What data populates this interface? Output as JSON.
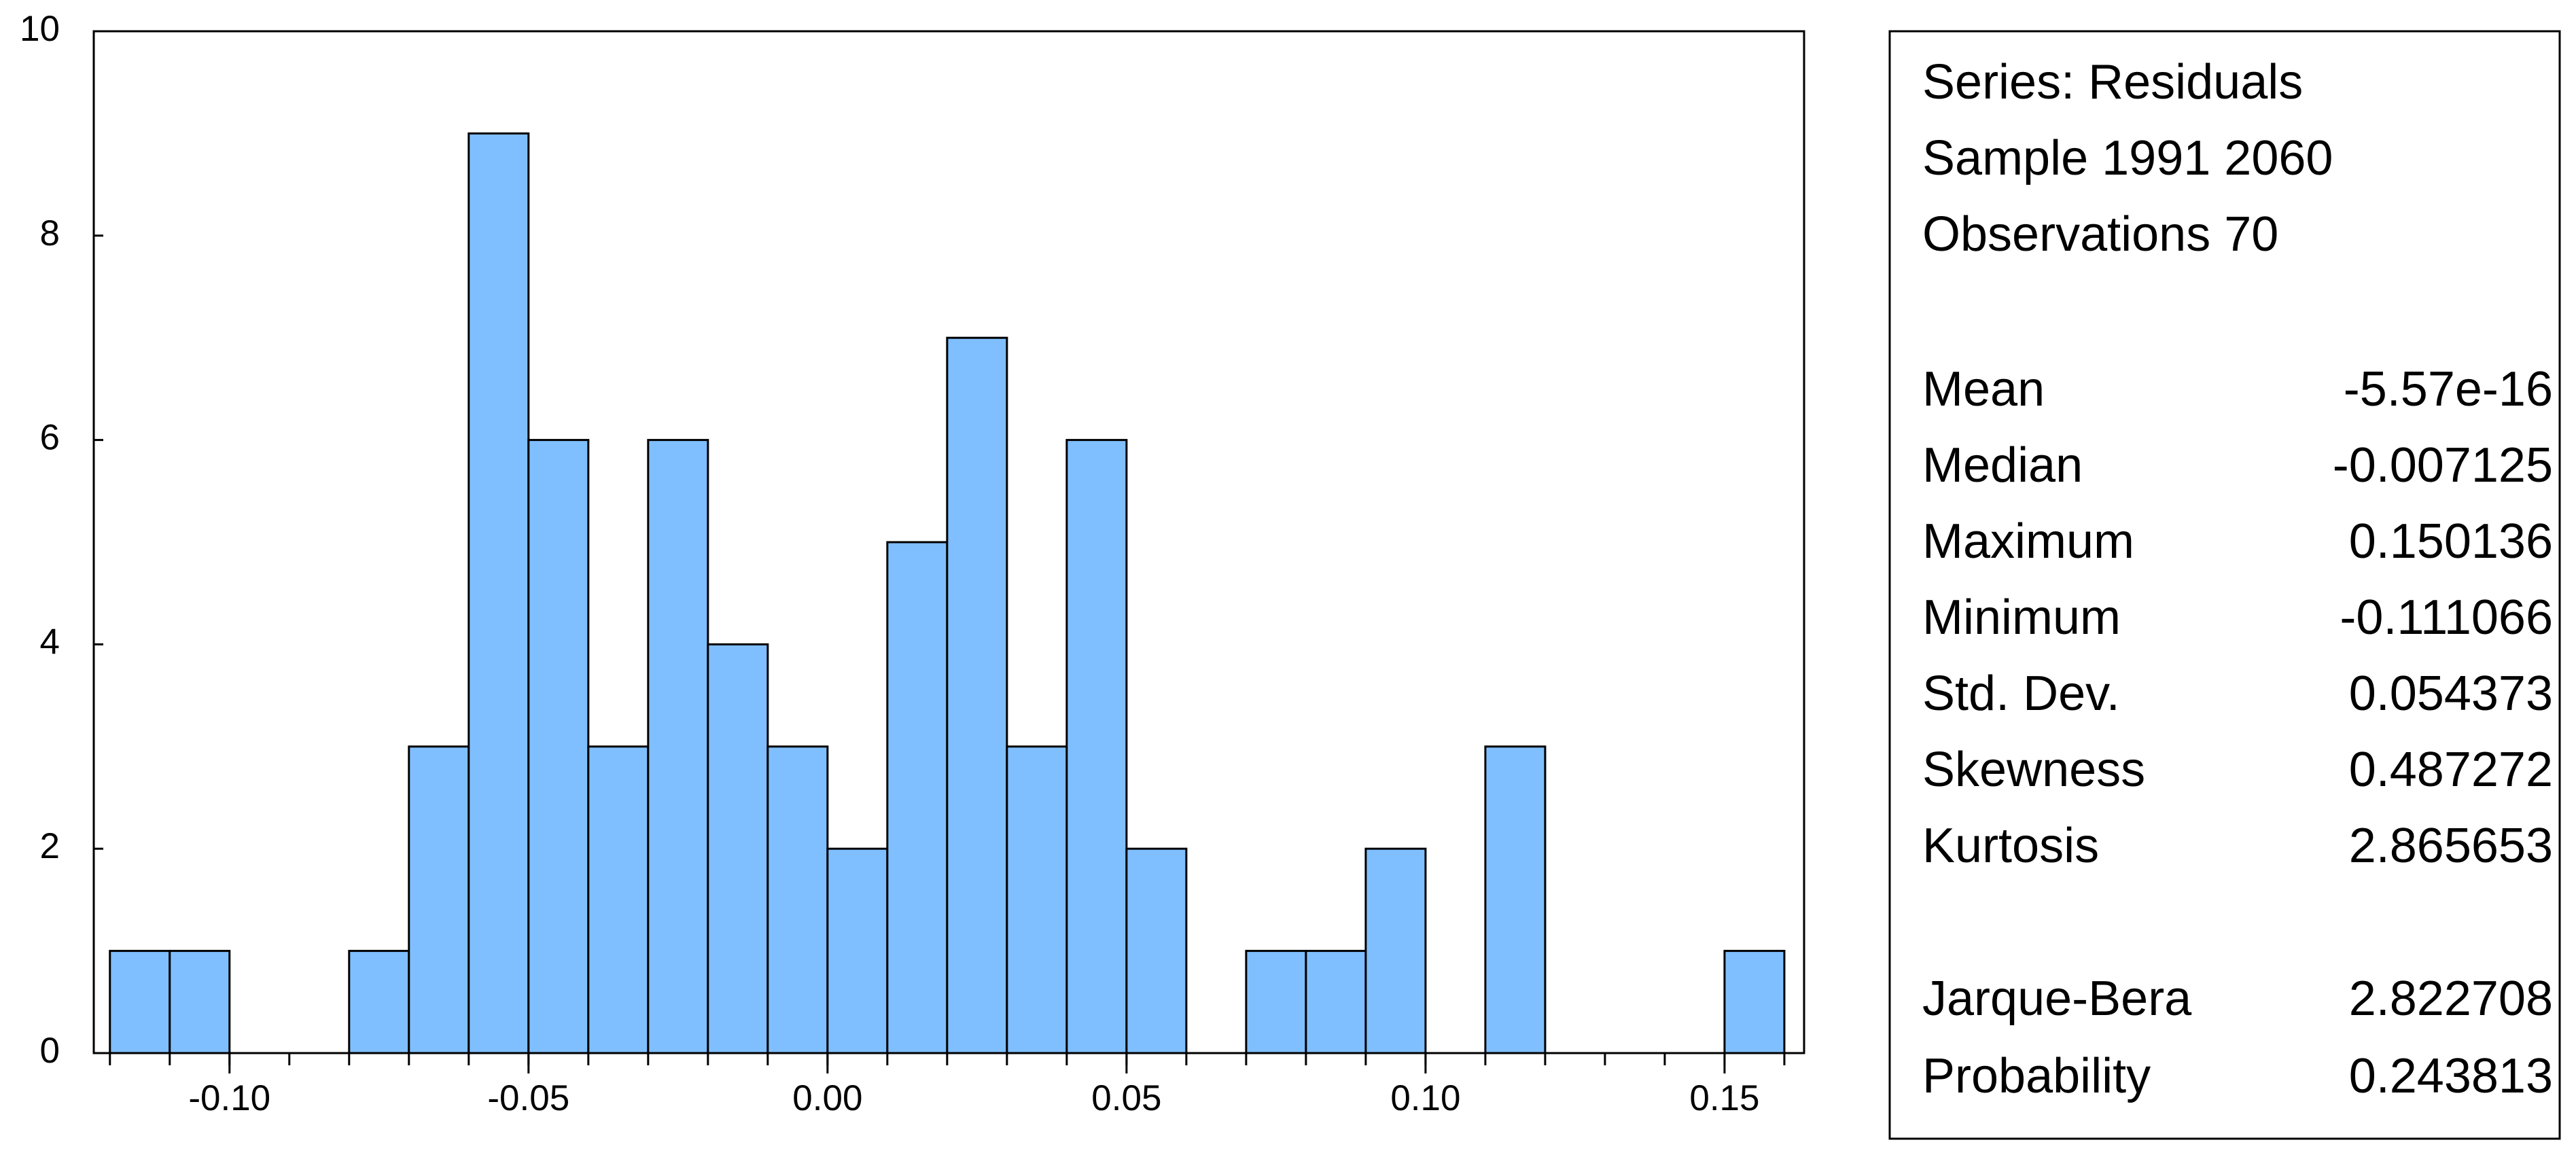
{
  "chart_data": {
    "type": "histogram",
    "bins": [
      -0.12,
      -0.11,
      -0.1,
      -0.09,
      -0.08,
      -0.07,
      -0.06,
      -0.05,
      -0.04,
      -0.03,
      -0.02,
      -0.01,
      0.0,
      0.01,
      0.02,
      0.03,
      0.04,
      0.05,
      0.06,
      0.07,
      0.08,
      0.09,
      0.1,
      0.11,
      0.12,
      0.13,
      0.14,
      0.15,
      0.16
    ],
    "values": [
      1,
      1,
      0,
      0,
      1,
      3,
      9,
      6,
      3,
      6,
      4,
      3,
      2,
      5,
      7,
      3,
      6,
      2,
      0,
      1,
      1,
      2,
      0,
      3,
      0,
      0,
      0,
      1
    ],
    "color": "#80bfff",
    "xlim": [
      -0.1227,
      0.1633
    ],
    "xticks": [
      {
        "value": -0.1,
        "label": "-0.10"
      },
      {
        "value": -0.05,
        "label": "-0.05"
      },
      {
        "value": 0,
        "label": "0.00"
      },
      {
        "value": 0.05,
        "label": "0.05"
      },
      {
        "value": 0.1,
        "label": "0.10"
      },
      {
        "value": 0.15,
        "label": "0.15"
      }
    ],
    "ylim": [
      0,
      10
    ],
    "yticks": [
      0,
      2,
      4,
      6,
      8,
      10
    ],
    "stats": {
      "header": [
        "Series: Residuals",
        "Sample 1991 2060",
        "Observations 70"
      ],
      "rows": [
        [
          "Mean",
          "-5.57e-16"
        ],
        [
          "Median",
          "-0.007125"
        ],
        [
          "Maximum",
          "0.150136"
        ],
        [
          "Minimum",
          "-0.111066"
        ],
        [
          "Std. Dev.",
          "0.054373"
        ],
        [
          "Skewness",
          "0.487272"
        ],
        [
          "Kurtosis",
          "2.865653"
        ]
      ],
      "tests": [
        [
          "Jarque-Bera",
          "2.822708"
        ],
        [
          "Probability",
          "0.243813"
        ]
      ]
    }
  }
}
